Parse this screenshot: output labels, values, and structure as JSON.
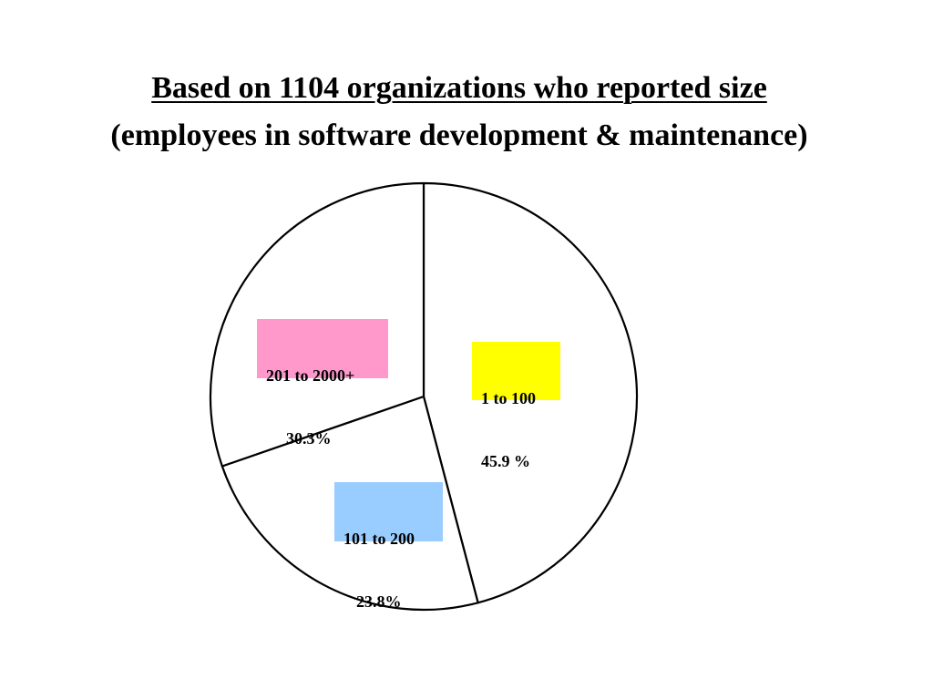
{
  "title": {
    "line1": "Based on 1104 organizations who reported size",
    "line2": "(employees in software development & maintenance)"
  },
  "chart_data": {
    "type": "pie",
    "title": "Based on 1104 organizations who reported size (employees in software development & maintenance)",
    "slices": [
      {
        "label": "1 to 100",
        "value_text": "45.9 %",
        "value": 45.9,
        "label_color": "#ffff00"
      },
      {
        "label": "101 to 200",
        "value_text": "23.8%",
        "value": 23.8,
        "label_color": "#99ccff"
      },
      {
        "label": "201 to 2000+",
        "value_text": "30.3%",
        "value": 30.3,
        "label_color": "#ff99cc"
      }
    ],
    "slice_fill": "#ffffff",
    "slice_stroke": "#000000",
    "start_direction": "top",
    "direction": "clockwise"
  }
}
